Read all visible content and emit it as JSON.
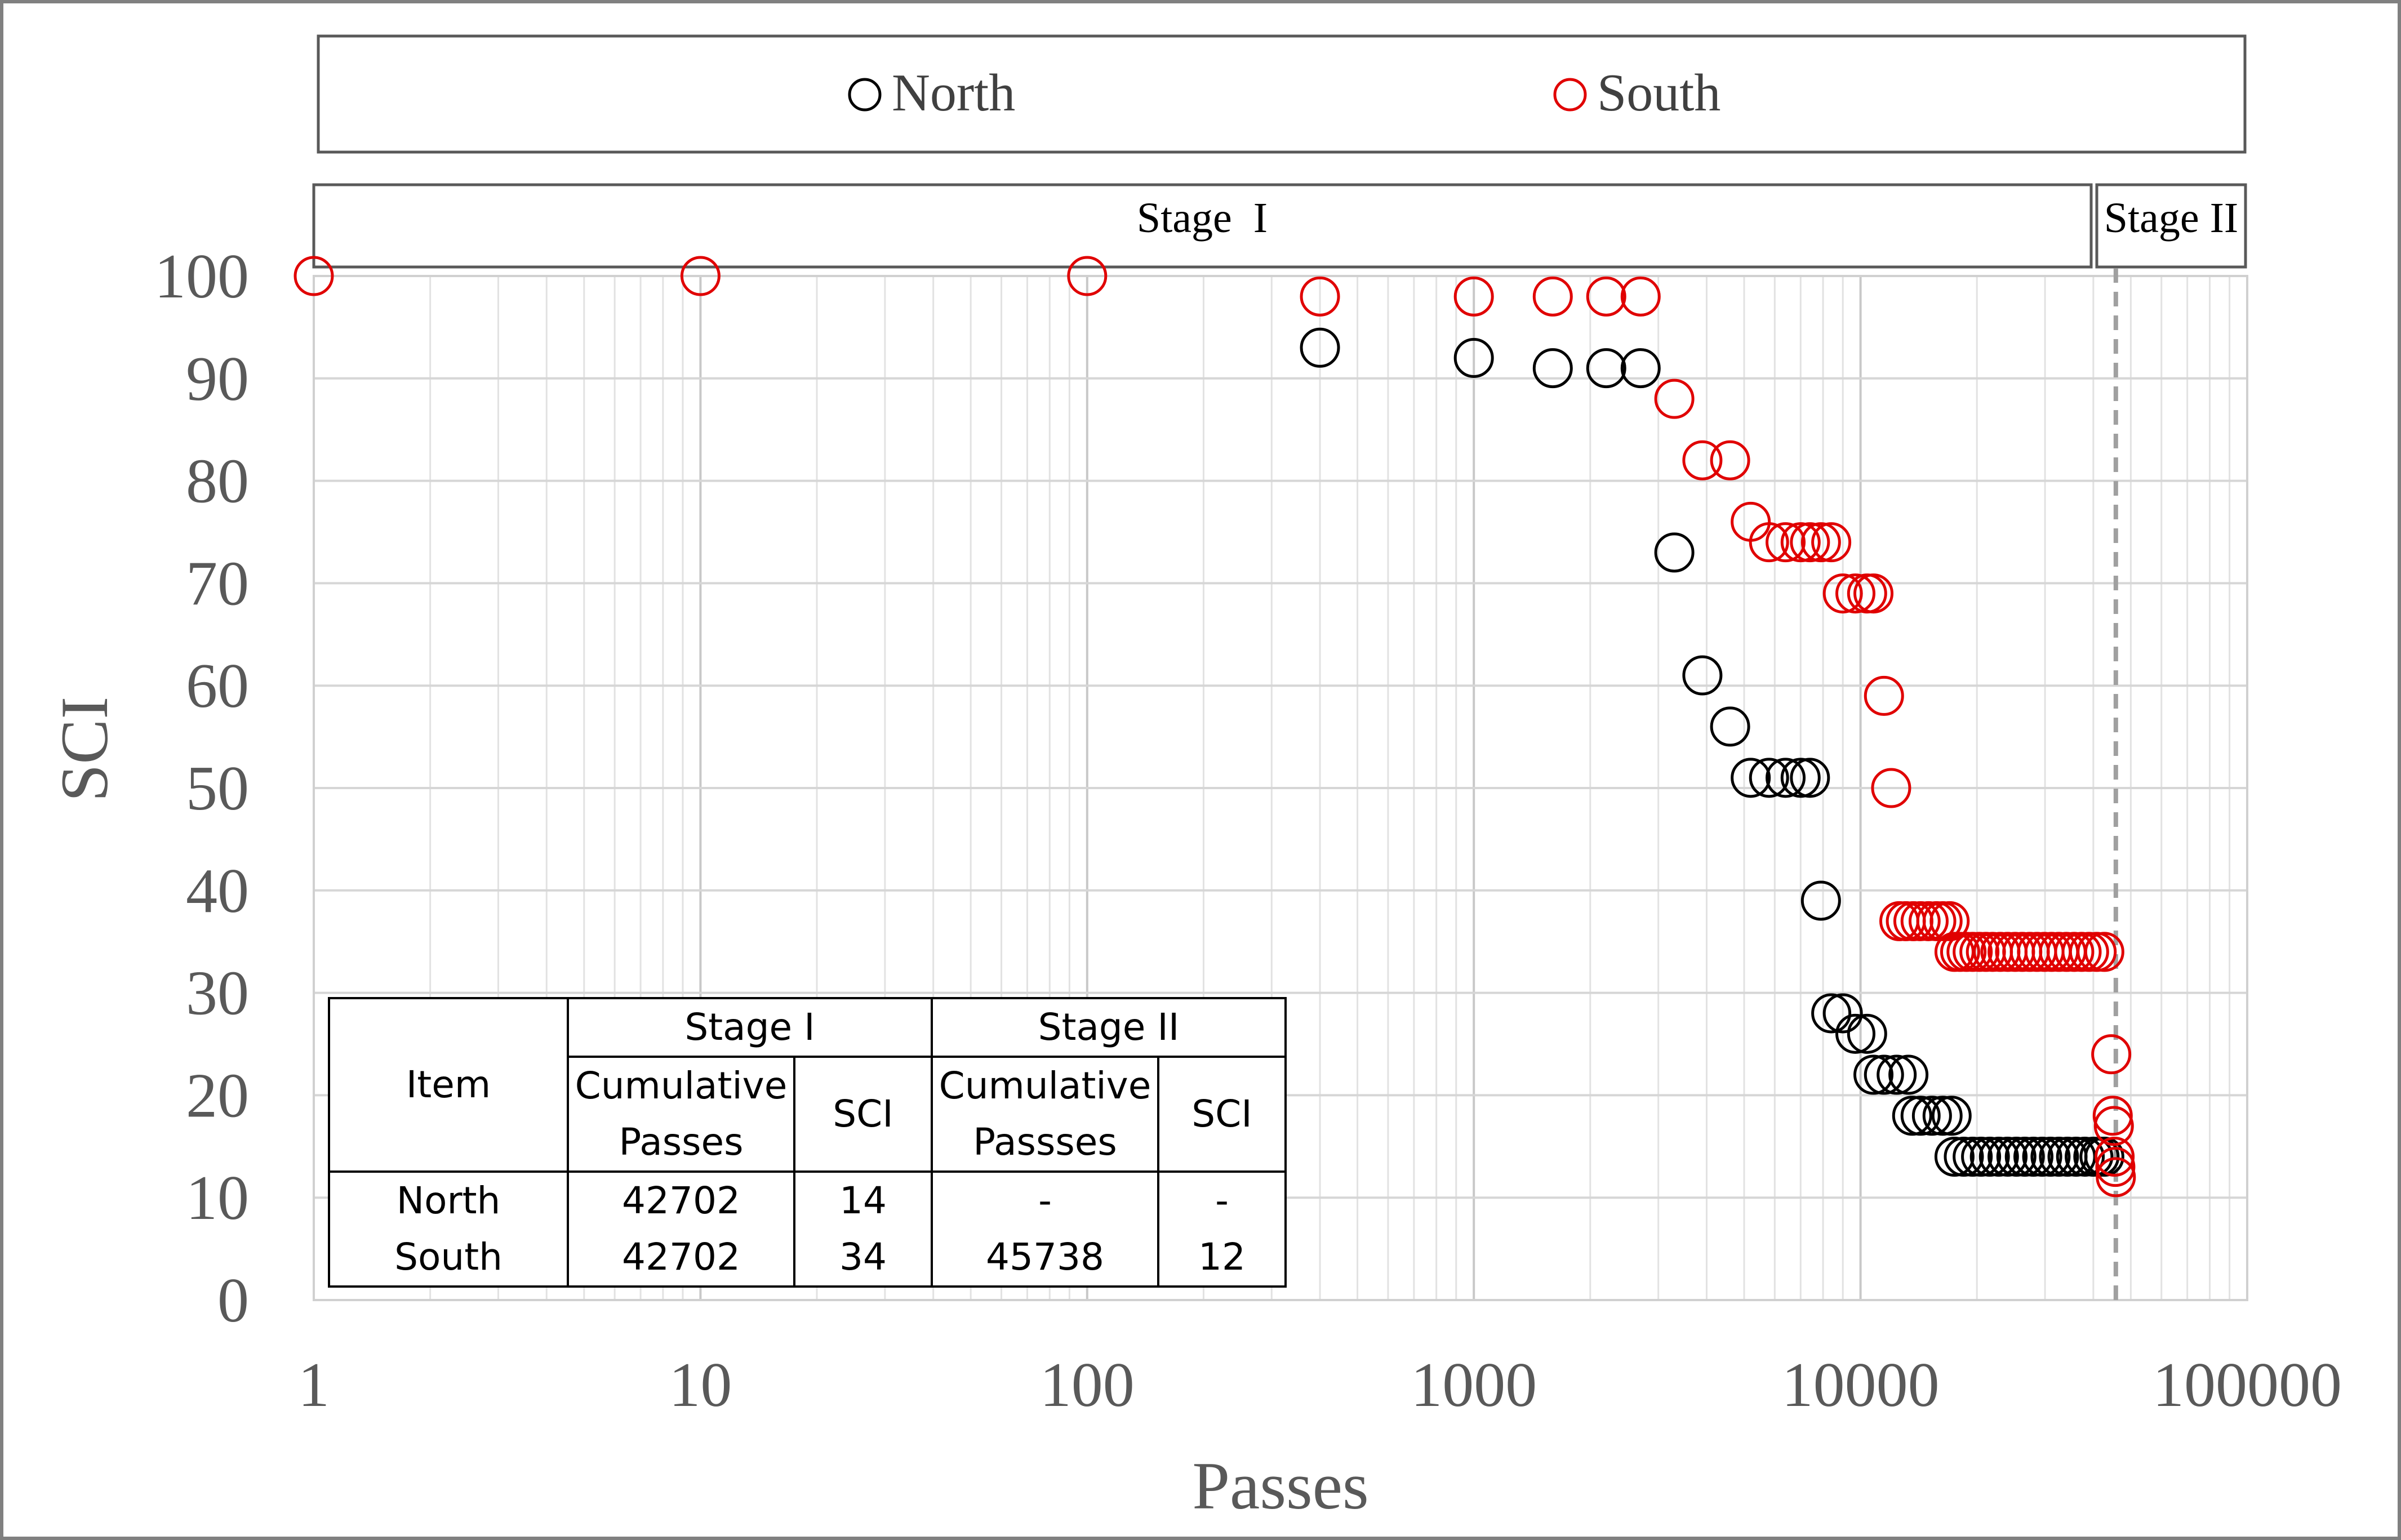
{
  "chart_data": {
    "type": "scatter",
    "xlabel": "Passes",
    "ylabel": "SCI",
    "xscale": "log",
    "xlim": [
      1,
      100000
    ],
    "ylim": [
      0,
      100
    ],
    "x_ticks": [
      "1",
      "10",
      "100",
      "1000",
      "10000",
      "100000"
    ],
    "y_ticks": [
      "0",
      "10",
      "20",
      "30",
      "40",
      "50",
      "60",
      "70",
      "80",
      "90",
      "100"
    ],
    "grid": true,
    "legend_position": "top",
    "stage_labels": [
      "Stage  I",
      "Stage II"
    ],
    "stage_boundary_x": 45738,
    "series": [
      {
        "name": "North",
        "color": "#000000",
        "marker": "open-circle",
        "points": [
          [
            400,
            93
          ],
          [
            1000,
            92
          ],
          [
            1600,
            91
          ],
          [
            2200,
            91
          ],
          [
            2700,
            91
          ],
          [
            3300,
            73
          ],
          [
            3900,
            61
          ],
          [
            4600,
            56
          ],
          [
            5200,
            51
          ],
          [
            5800,
            51
          ],
          [
            6400,
            51
          ],
          [
            7000,
            51
          ],
          [
            7400,
            51
          ],
          [
            7900,
            39
          ],
          [
            8400,
            28
          ],
          [
            9000,
            28
          ],
          [
            9700,
            26
          ],
          [
            10400,
            26
          ],
          [
            10800,
            22
          ],
          [
            11500,
            22
          ],
          [
            12400,
            22
          ],
          [
            13300,
            22
          ],
          [
            13600,
            18
          ],
          [
            14300,
            18
          ],
          [
            15300,
            18
          ],
          [
            16300,
            18
          ],
          [
            17200,
            18
          ],
          [
            17500,
            14
          ],
          [
            18500,
            14
          ],
          [
            19500,
            14
          ],
          [
            20500,
            14
          ],
          [
            21600,
            14
          ],
          [
            22800,
            14
          ],
          [
            24000,
            14
          ],
          [
            25300,
            14
          ],
          [
            26600,
            14
          ],
          [
            28000,
            14
          ],
          [
            29500,
            14
          ],
          [
            31000,
            14
          ],
          [
            32600,
            14
          ],
          [
            34300,
            14
          ],
          [
            36100,
            14
          ],
          [
            38000,
            14
          ],
          [
            40000,
            14
          ],
          [
            41500,
            14
          ],
          [
            42702,
            14
          ]
        ]
      },
      {
        "name": "South",
        "color": "#e00000",
        "marker": "open-circle",
        "points": [
          [
            1,
            100
          ],
          [
            10,
            100
          ],
          [
            100,
            100
          ],
          [
            400,
            98
          ],
          [
            1000,
            98
          ],
          [
            1600,
            98
          ],
          [
            2200,
            98
          ],
          [
            2700,
            98
          ],
          [
            3300,
            88
          ],
          [
            3900,
            82
          ],
          [
            4600,
            82
          ],
          [
            5200,
            76
          ],
          [
            5800,
            74
          ],
          [
            6400,
            74
          ],
          [
            7000,
            74
          ],
          [
            7400,
            74
          ],
          [
            7900,
            74
          ],
          [
            8400,
            74
          ],
          [
            9000,
            69
          ],
          [
            9700,
            69
          ],
          [
            10400,
            69
          ],
          [
            10800,
            69
          ],
          [
            11500,
            59
          ],
          [
            12000,
            50
          ],
          [
            12600,
            37
          ],
          [
            13100,
            37
          ],
          [
            13700,
            37
          ],
          [
            14300,
            37
          ],
          [
            15000,
            37
          ],
          [
            15700,
            37
          ],
          [
            16300,
            37
          ],
          [
            17000,
            37
          ],
          [
            17500,
            34
          ],
          [
            18100,
            34
          ],
          [
            18800,
            34
          ],
          [
            19500,
            34
          ],
          [
            20300,
            34
          ],
          [
            21100,
            34
          ],
          [
            22000,
            34
          ],
          [
            23000,
            34
          ],
          [
            24000,
            34
          ],
          [
            25100,
            34
          ],
          [
            26200,
            34
          ],
          [
            27400,
            34
          ],
          [
            28600,
            34
          ],
          [
            29900,
            34
          ],
          [
            31200,
            34
          ],
          [
            32600,
            34
          ],
          [
            34100,
            34
          ],
          [
            35700,
            34
          ],
          [
            37300,
            34
          ],
          [
            39000,
            34
          ],
          [
            40800,
            34
          ],
          [
            42702,
            34
          ],
          [
            44500,
            24
          ],
          [
            44900,
            18
          ],
          [
            45200,
            17
          ],
          [
            45400,
            14
          ],
          [
            45600,
            13
          ],
          [
            45738,
            12
          ]
        ]
      }
    ]
  },
  "legend": {
    "items": [
      {
        "label": "North",
        "color": "#000000"
      },
      {
        "label": "South",
        "color": "#e00000"
      }
    ]
  },
  "table": {
    "header_item": "Item",
    "stage1": "Stage I",
    "stage2": "Stage II",
    "cum1": "Cumulative Passes",
    "sci1": "SCI",
    "cum2": "Cumulative Passses",
    "sci2": "SCI",
    "rows": [
      {
        "item": "North",
        "cum1": "42702",
        "sci1": "14",
        "cum2": "-",
        "sci2": "-"
      },
      {
        "item": "South",
        "cum1": "42702",
        "sci1": "34",
        "cum2": "45738",
        "sci2": "12"
      }
    ]
  }
}
